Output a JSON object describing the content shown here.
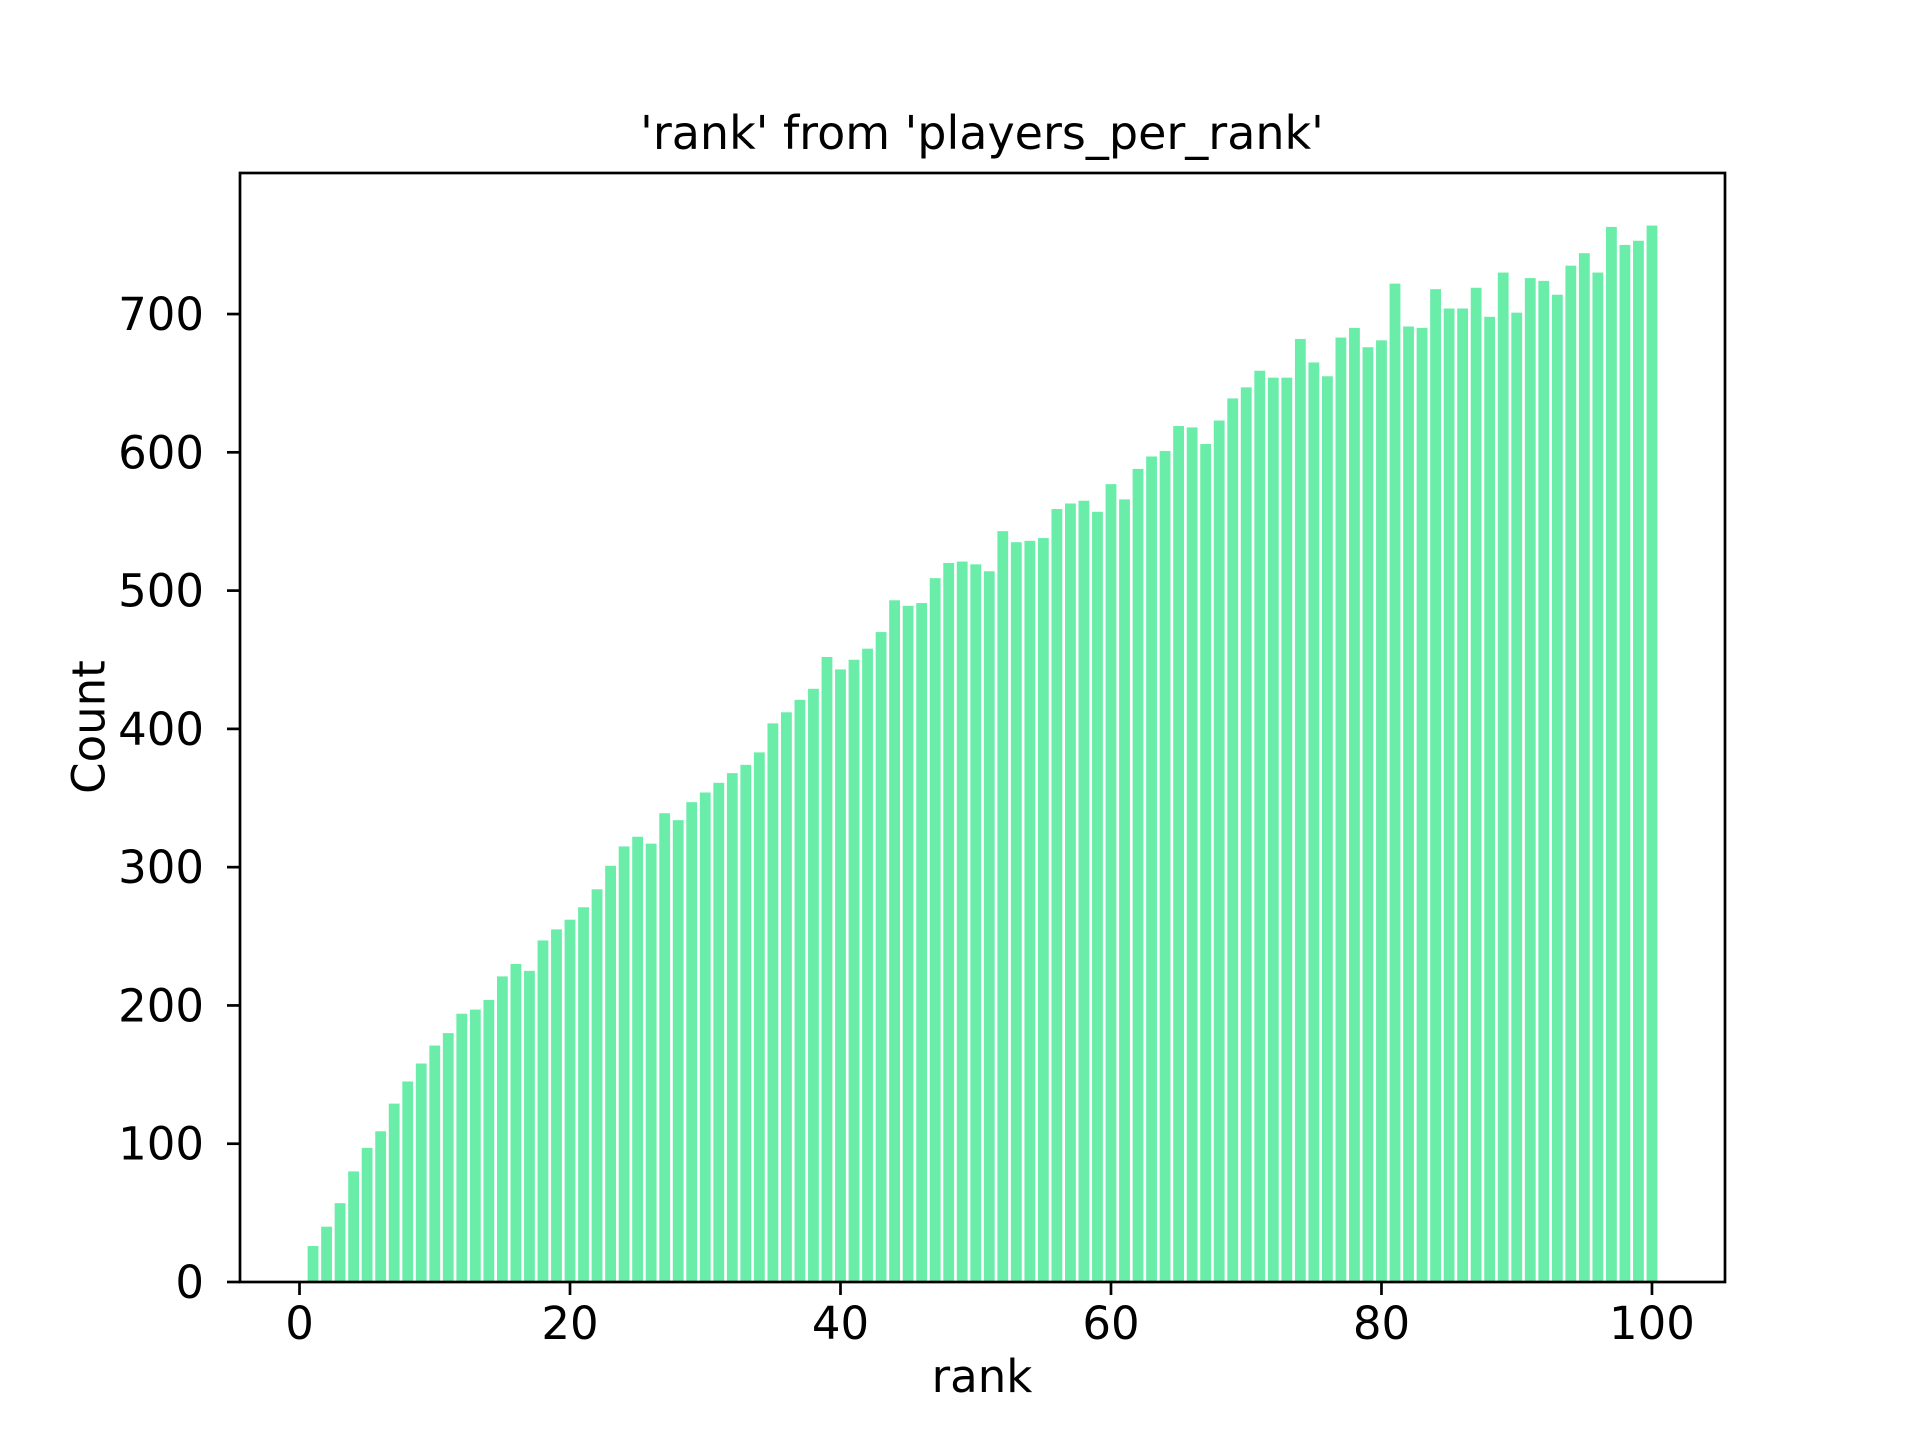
{
  "figure": {
    "title": "'rank' from 'players_per_rank'",
    "xlabel": "rank",
    "ylabel": "Count",
    "background": "#ffffff",
    "bar_color": "#69eda9",
    "axis_color": "#000000"
  },
  "chart_data": {
    "type": "bar",
    "title": "'rank' from 'players_per_rank'",
    "xlabel": "rank",
    "ylabel": "Count",
    "legend": null,
    "grid": false,
    "bar_color": "#69eda9",
    "xlim": [
      -4.4,
      105.4
    ],
    "ylim": [
      0,
      802
    ],
    "x_ticks": [
      0,
      20,
      40,
      60,
      80,
      100
    ],
    "y_ticks": [
      0,
      100,
      200,
      300,
      400,
      500,
      600,
      700
    ],
    "x": [
      1,
      2,
      3,
      4,
      5,
      6,
      7,
      8,
      9,
      10,
      11,
      12,
      13,
      14,
      15,
      16,
      17,
      18,
      19,
      20,
      21,
      22,
      23,
      24,
      25,
      26,
      27,
      28,
      29,
      30,
      31,
      32,
      33,
      34,
      35,
      36,
      37,
      38,
      39,
      40,
      41,
      42,
      43,
      44,
      45,
      46,
      47,
      48,
      49,
      50,
      51,
      52,
      53,
      54,
      55,
      56,
      57,
      58,
      59,
      60,
      61,
      62,
      63,
      64,
      65,
      66,
      67,
      68,
      69,
      70,
      71,
      72,
      73,
      74,
      75,
      76,
      77,
      78,
      79,
      80,
      81,
      82,
      83,
      84,
      85,
      86,
      87,
      88,
      89,
      90,
      91,
      92,
      93,
      94,
      95,
      96,
      97,
      98,
      99,
      100
    ],
    "values": [
      26,
      40,
      57,
      80,
      97,
      109,
      129,
      145,
      158,
      171,
      180,
      194,
      197,
      204,
      221,
      230,
      225,
      247,
      255,
      262,
      271,
      284,
      301,
      315,
      322,
      317,
      339,
      334,
      347,
      354,
      361,
      368,
      374,
      383,
      404,
      412,
      421,
      429,
      452,
      443,
      450,
      458,
      470,
      493,
      489,
      491,
      509,
      520,
      521,
      519,
      514,
      543,
      535,
      536,
      538,
      559,
      563,
      565,
      557,
      577,
      566,
      588,
      597,
      601,
      619,
      618,
      606,
      623,
      639,
      647,
      659,
      654,
      654,
      682,
      665,
      655,
      683,
      690,
      676,
      681,
      722,
      691,
      690,
      718,
      704,
      704,
      719,
      698,
      730,
      701,
      726,
      724,
      714,
      735,
      744,
      730,
      763,
      750,
      753,
      764
    ]
  }
}
